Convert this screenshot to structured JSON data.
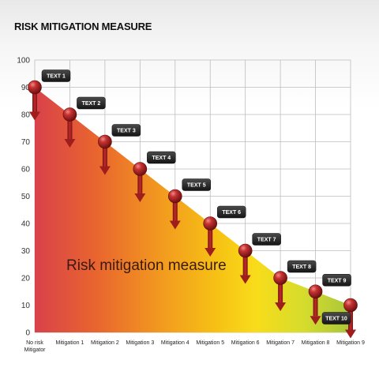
{
  "page_title": "RISK MITIGATION MEASURE",
  "chart_data": {
    "type": "area",
    "title": "RISK MITIGATION MEASURE",
    "categories": [
      "No risk Mitigator",
      "Mitigation 1",
      "Mitigation 2",
      "Mitigation 3",
      "Mitigation 4",
      "Mitigation 5",
      "Mitigation 6",
      "Mitigation 7",
      "Mitigation 8",
      "Mitigation 9"
    ],
    "values": [
      90,
      80,
      70,
      60,
      50,
      40,
      30,
      20,
      15,
      10
    ],
    "point_labels": [
      "TEXT 1",
      "TEXT 2",
      "TEXT 3",
      "TEXT 4",
      "TEXT 5",
      "TEXT 6",
      "TEXT 7",
      "TEXT 8",
      "TEXT 9",
      "TEXT 10"
    ],
    "annotation": "Risk mitigation measure",
    "ylim": [
      0,
      100
    ],
    "yticks": [
      0,
      10,
      20,
      30,
      40,
      50,
      60,
      70,
      80,
      90,
      100
    ],
    "grid": true,
    "xlabel": "",
    "ylabel": "",
    "colors": {
      "gradient": [
        "#d9414a",
        "#e9662e",
        "#f29a1f",
        "#f7c214",
        "#f8dc1a",
        "#d6dc2c",
        "#a8c63a"
      ],
      "marker": "#b02424",
      "tag": "#2b2b2b"
    }
  }
}
